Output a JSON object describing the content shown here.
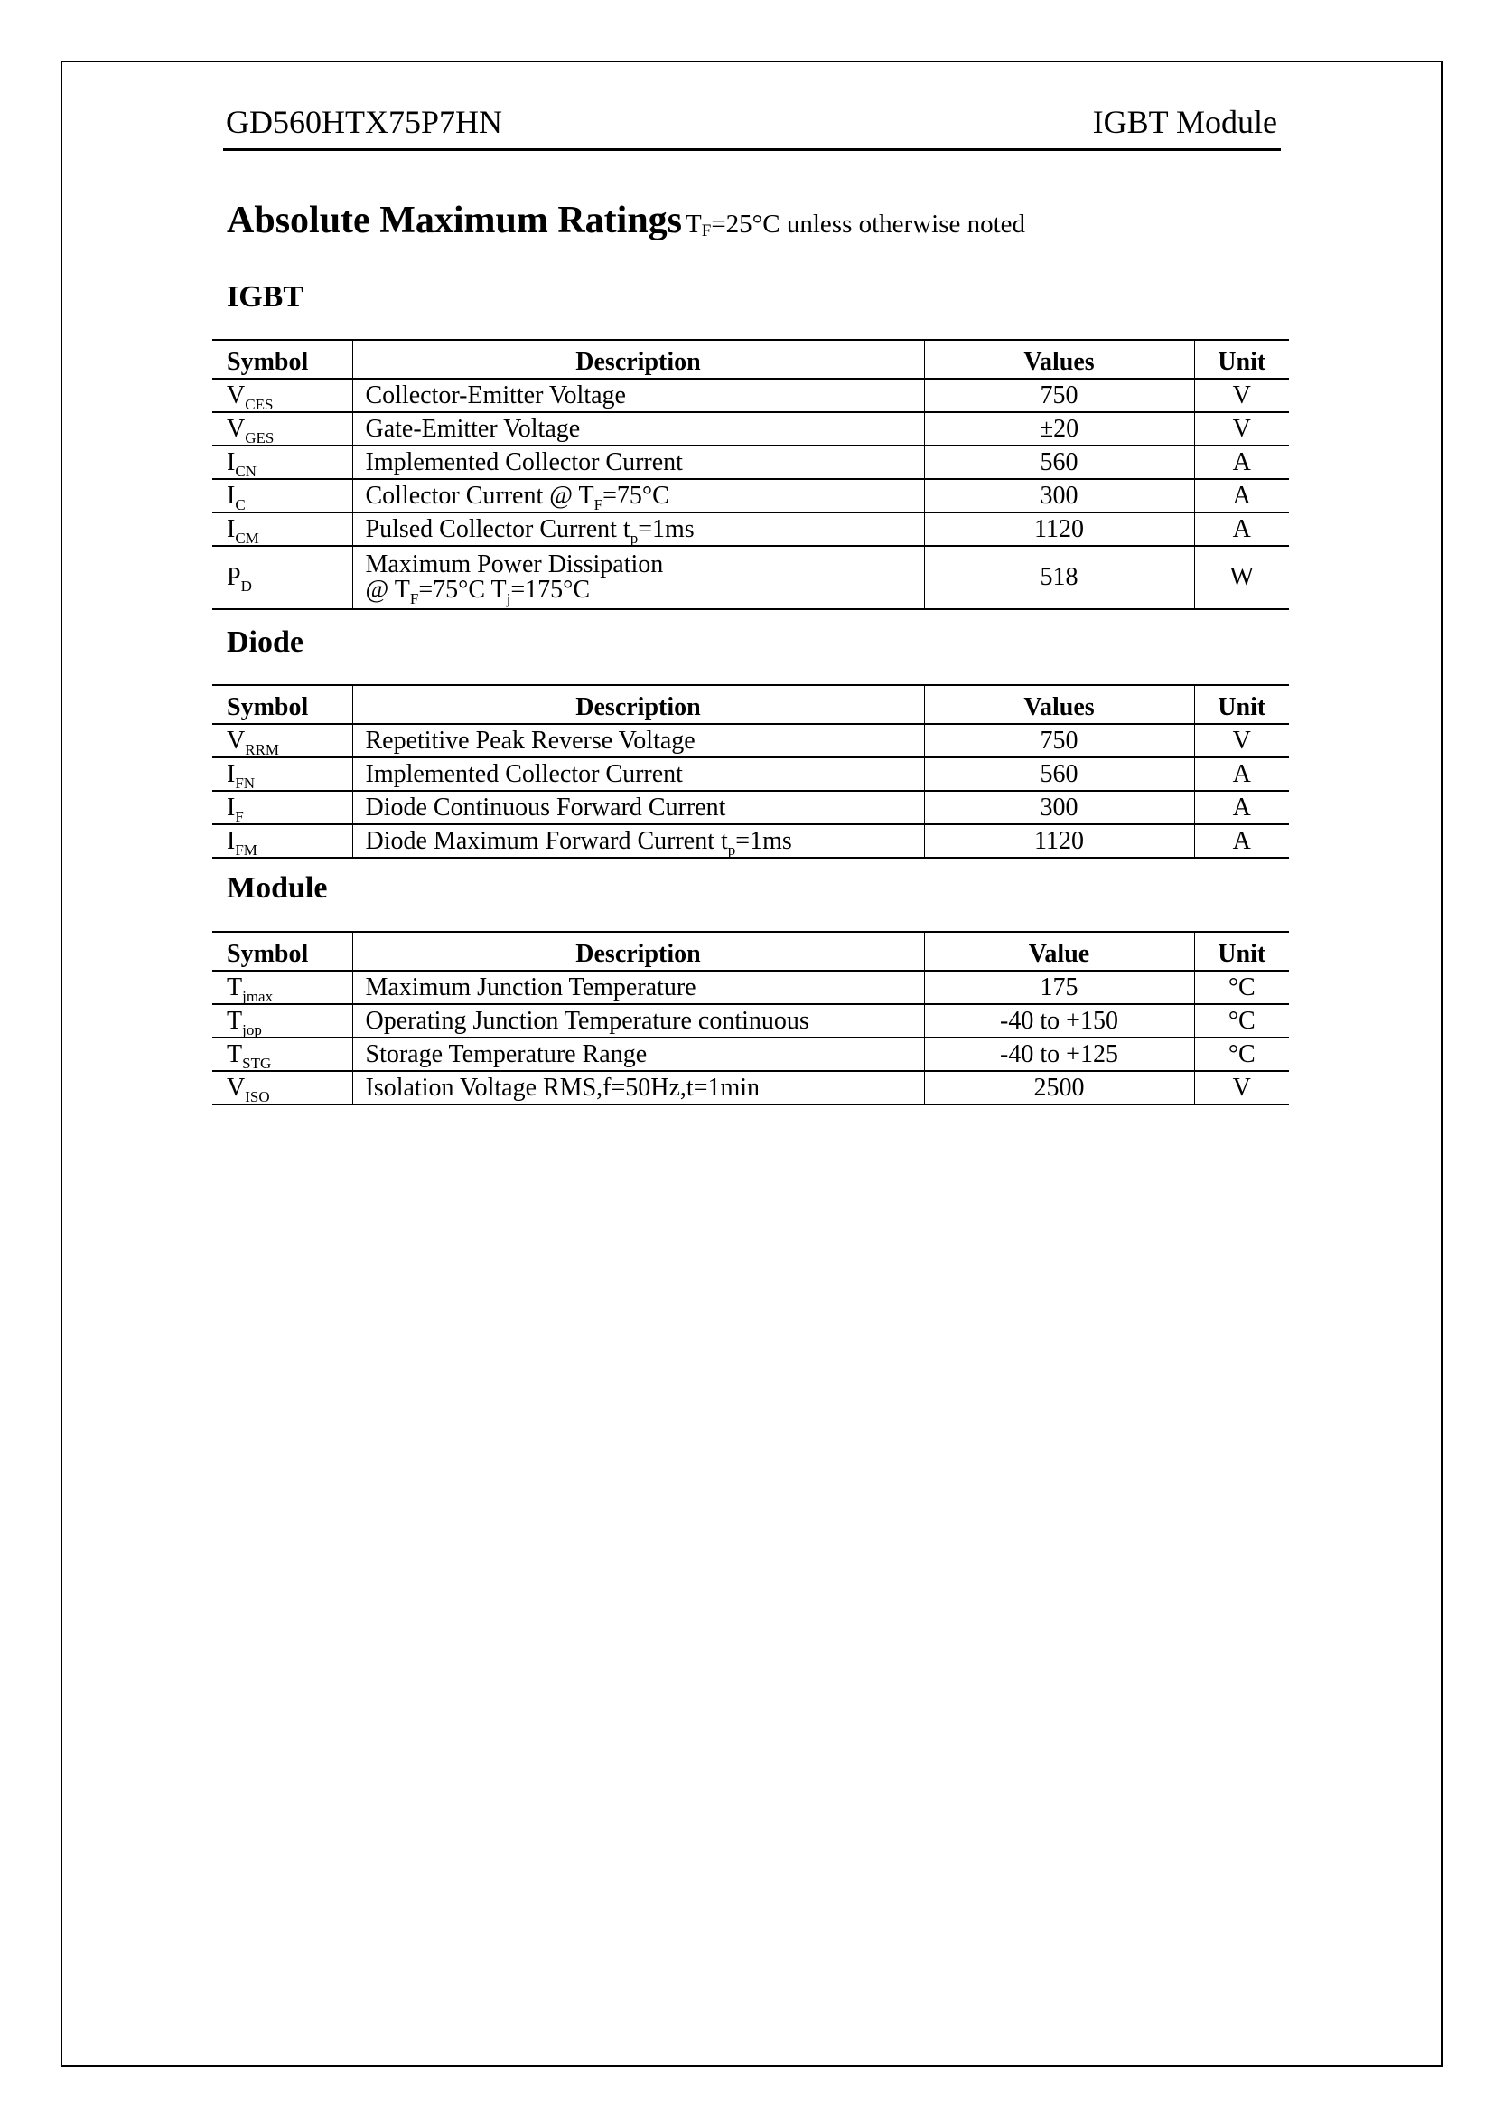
{
  "header": {
    "part_number": "GD560HTX75P7HN",
    "product_type": "IGBT Module"
  },
  "title": {
    "main": "Absolute Maximum Ratings",
    "cond_pre": "T",
    "cond_sub": "F",
    "cond_post": "=25°C unless otherwise noted"
  },
  "sections": [
    {
      "heading": "IGBT",
      "columns": [
        "Symbol",
        "Description",
        "Values",
        "Unit"
      ],
      "rows": [
        {
          "sym": "V",
          "sub": "CES",
          "desc": [
            {
              "t": "Collector-Emitter Voltage"
            }
          ],
          "value": "750",
          "unit": "V"
        },
        {
          "sym": "V",
          "sub": "GES",
          "desc": [
            {
              "t": "Gate-Emitter Voltage"
            }
          ],
          "value": "±20",
          "unit": "V"
        },
        {
          "sym": "I",
          "sub": "CN",
          "desc": [
            {
              "t": "Implemented Collector Current"
            }
          ],
          "value": "560",
          "unit": "A"
        },
        {
          "sym": "I",
          "sub": "C",
          "desc": [
            {
              "t": "Collector Current  @ T"
            },
            {
              "sub": "F"
            },
            {
              "t": "=75°C"
            }
          ],
          "value": "300",
          "unit": "A"
        },
        {
          "sym": "I",
          "sub": "CM",
          "desc": [
            {
              "t": "Pulsed Collector Current  t"
            },
            {
              "sub": "p"
            },
            {
              "t": "=1ms"
            }
          ],
          "value": "1120",
          "unit": "A"
        },
        {
          "sym": "P",
          "sub": "D",
          "desc": [
            {
              "t": "Maximum Power Dissipation"
            },
            {
              "br": true
            },
            {
              "t": "@ T"
            },
            {
              "sub": "F"
            },
            {
              "t": "=75°C T"
            },
            {
              "sub": "j"
            },
            {
              "t": "=175°C"
            }
          ],
          "value": "518",
          "unit": "W"
        }
      ]
    },
    {
      "heading": "Diode",
      "columns": [
        "Symbol",
        "Description",
        "Values",
        "Unit"
      ],
      "rows": [
        {
          "sym": "V",
          "sub": "RRM",
          "desc": [
            {
              "t": "Repetitive Peak Reverse Voltage"
            }
          ],
          "value": "750",
          "unit": "V"
        },
        {
          "sym": "I",
          "sub": "FN",
          "desc": [
            {
              "t": "Implemented Collector Current"
            }
          ],
          "value": "560",
          "unit": "A"
        },
        {
          "sym": "I",
          "sub": "F",
          "desc": [
            {
              "t": "Diode Continuous Forward Current"
            }
          ],
          "value": "300",
          "unit": "A"
        },
        {
          "sym": "I",
          "sub": "FM",
          "desc": [
            {
              "t": "Diode Maximum Forward Current  t"
            },
            {
              "sub": "p"
            },
            {
              "t": "=1ms"
            }
          ],
          "value": "1120",
          "unit": "A"
        }
      ]
    },
    {
      "heading": "Module",
      "columns": [
        "Symbol",
        "Description",
        "Value",
        "Unit"
      ],
      "rows": [
        {
          "sym": "T",
          "sub": "jmax",
          "desc": [
            {
              "t": "Maximum Junction Temperature"
            }
          ],
          "value": "175",
          "unit": "°C"
        },
        {
          "sym": "T",
          "sub": "jop",
          "desc": [
            {
              "t": "Operating Junction Temperature continuous"
            }
          ],
          "value": "-40 to +150",
          "unit": "°C"
        },
        {
          "sym": "T",
          "sub": "STG",
          "desc": [
            {
              "t": "Storage Temperature Range"
            }
          ],
          "value": "-40 to +125",
          "unit": "°C"
        },
        {
          "sym": "V",
          "sub": "ISO",
          "desc": [
            {
              "t": "Isolation Voltage  RMS,f=50Hz,t=1min"
            }
          ],
          "value": "2500",
          "unit": "V"
        }
      ]
    }
  ]
}
